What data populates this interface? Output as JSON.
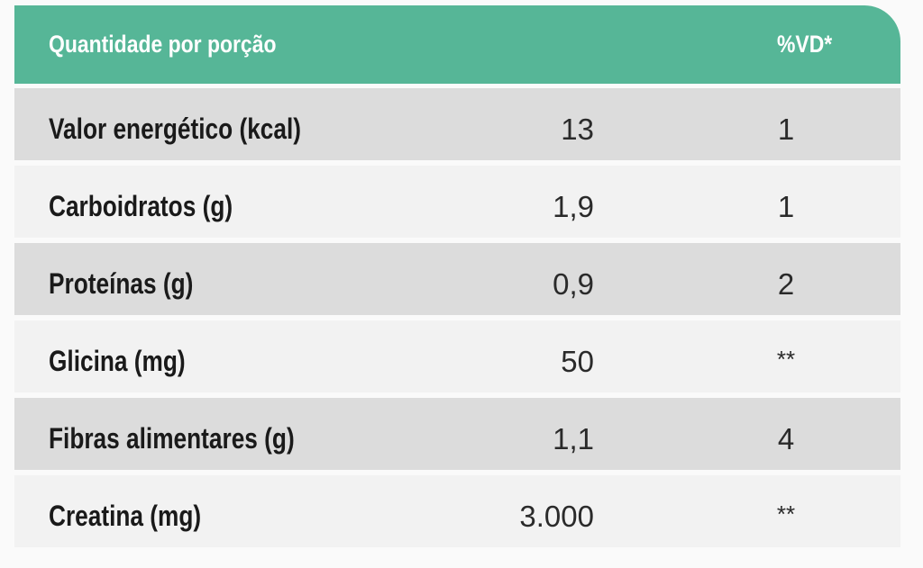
{
  "header": {
    "label": "Quantidade por porção",
    "vd": "%VD*"
  },
  "rows": [
    {
      "label": "Valor energético (kcal)",
      "value": "13",
      "vd": "1"
    },
    {
      "label": "Carboidratos (g)",
      "value": "1,9",
      "vd": "1"
    },
    {
      "label": "Proteínas (g)",
      "value": "0,9",
      "vd": "2"
    },
    {
      "label": "Glicina (mg)",
      "value": "50",
      "vd": "**"
    },
    {
      "label": "Fibras alimentares (g)",
      "value": "1,1",
      "vd": "4"
    },
    {
      "label": "Creatina (mg)",
      "value": "3.000",
      "vd": "**"
    }
  ],
  "colors": {
    "header_bg": "#56b697",
    "row_dark": "#dcdcdc",
    "row_light": "#f2f2f2"
  }
}
